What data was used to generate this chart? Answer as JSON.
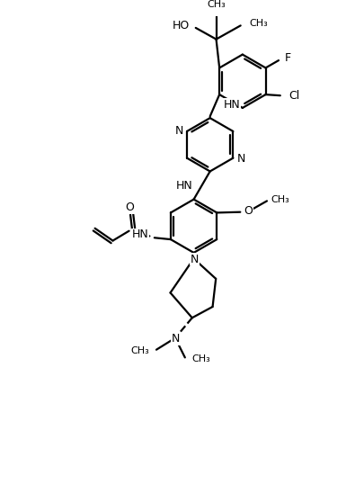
{
  "figsize": [
    3.95,
    5.38
  ],
  "dpi": 100,
  "xlim": [
    -1.5,
    8.5
  ],
  "ylim": [
    -2.8,
    11.5
  ],
  "lw": 1.6,
  "fs": 9,
  "fs_small": 8
}
